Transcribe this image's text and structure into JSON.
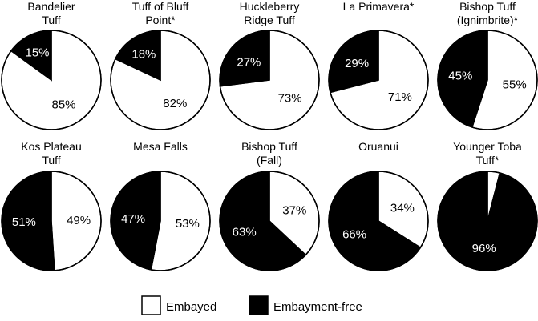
{
  "chart_data": {
    "type": "pie",
    "colors": {
      "embayed": "#ffffff",
      "embayment_free": "#000000",
      "outline": "#000000"
    },
    "legend": [
      {
        "key": "embayed",
        "label": "Embayed",
        "color": "#ffffff"
      },
      {
        "key": "embayment_free",
        "label": "Embayment-free",
        "color": "#000000"
      }
    ],
    "charts": [
      {
        "title": [
          "Bandelier",
          "Tuff"
        ],
        "embayed": 85,
        "embayment_free": 15,
        "labels": {
          "embayed": "85%",
          "embayment_free": "15%"
        }
      },
      {
        "title": [
          "Tuff of Bluff",
          "Point*"
        ],
        "embayed": 82,
        "embayment_free": 18,
        "labels": {
          "embayed": "82%",
          "embayment_free": "18%"
        }
      },
      {
        "title": [
          "Huckleberry",
          "Ridge Tuff"
        ],
        "embayed": 73,
        "embayment_free": 27,
        "labels": {
          "embayed": "73%",
          "embayment_free": "27%"
        }
      },
      {
        "title": [
          "La Primavera*"
        ],
        "embayed": 71,
        "embayment_free": 29,
        "labels": {
          "embayed": "71%",
          "embayment_free": "29%"
        }
      },
      {
        "title": [
          "Bishop Tuff",
          "(Ignimbrite)*"
        ],
        "embayed": 55,
        "embayment_free": 45,
        "labels": {
          "embayed": "55%",
          "embayment_free": "45%"
        }
      },
      {
        "title": [
          "Kos Plateau",
          "Tuff"
        ],
        "embayed": 49,
        "embayment_free": 51,
        "labels": {
          "embayed": "49%",
          "embayment_free": "51%"
        }
      },
      {
        "title": [
          "Mesa Falls"
        ],
        "embayed": 53,
        "embayment_free": 47,
        "labels": {
          "embayed": "53%",
          "embayment_free": "47%"
        }
      },
      {
        "title": [
          "Bishop Tuff",
          "(Fall)"
        ],
        "embayed": 37,
        "embayment_free": 63,
        "labels": {
          "embayed": "37%",
          "embayment_free": "63%"
        }
      },
      {
        "title": [
          "Oruanui"
        ],
        "embayed": 34,
        "embayment_free": 66,
        "labels": {
          "embayed": "34%",
          "embayment_free": "66%"
        }
      },
      {
        "title": [
          "Younger Toba",
          "Tuff*"
        ],
        "embayed": 4,
        "embayment_free": 96,
        "labels": {
          "embayed": "",
          "embayment_free": "96%"
        }
      }
    ]
  }
}
